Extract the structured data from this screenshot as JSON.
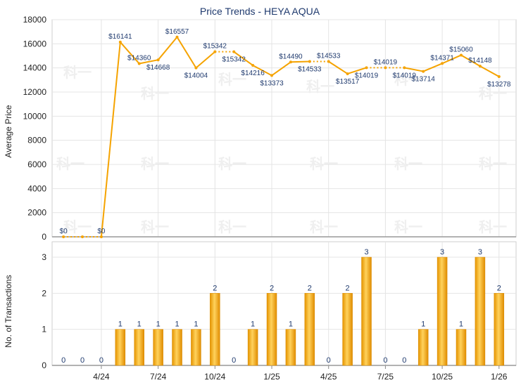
{
  "chart_data": [
    {
      "type": "line",
      "title": "Price Trends - HEYA AQUA",
      "ylabel": "Average Price",
      "ylim": [
        0,
        18000
      ],
      "yticks": [
        0,
        2000,
        4000,
        6000,
        8000,
        10000,
        12000,
        14000,
        16000,
        18000
      ],
      "series": [
        {
          "values": [
            0,
            0,
            0,
            16141,
            14360,
            14668,
            16557,
            14004,
            15342,
            15342,
            14216,
            13373,
            14490,
            14533,
            14533,
            13517,
            14019,
            14019,
            14019,
            13714,
            14371,
            15060,
            14148,
            13278
          ],
          "labels": [
            "$0",
            "$0",
            "$0",
            "$16141",
            "$14360",
            "$14668",
            "$16557",
            "$14004",
            "$15342",
            "$15342",
            "$14216",
            "$13373",
            "$14490",
            "$14533",
            "$14533",
            "$13517",
            "$14019",
            "$14019",
            "$14019",
            "$13714",
            "$14371",
            "$15060",
            "$14148",
            "$13278"
          ],
          "label_pos": [
            "above",
            "below",
            "above",
            "above",
            "above",
            "below",
            "above",
            "below",
            "above",
            "below",
            "below",
            "below",
            "above",
            "below",
            "above",
            "below",
            "below",
            "above",
            "below",
            "below",
            "above",
            "above",
            "above",
            "below"
          ]
        }
      ],
      "grid": true,
      "line_color": "#f5a300"
    },
    {
      "type": "bar",
      "ylabel": "No. of Transactions",
      "ylim": [
        0,
        3
      ],
      "yticks": [
        0,
        1,
        2,
        3
      ],
      "x_tick_labels": [
        "4/24",
        "7/24",
        "10/24",
        "1/25",
        "4/25",
        "7/25",
        "10/25",
        "1/26"
      ],
      "values": [
        0,
        0,
        0,
        1,
        1,
        1,
        1,
        1,
        2,
        0,
        1,
        2,
        1,
        2,
        0,
        2,
        3,
        0,
        0,
        1,
        3,
        1,
        3,
        2
      ],
      "grid": true,
      "bar_color": "#f5a300"
    }
  ],
  "watermark": "科一"
}
